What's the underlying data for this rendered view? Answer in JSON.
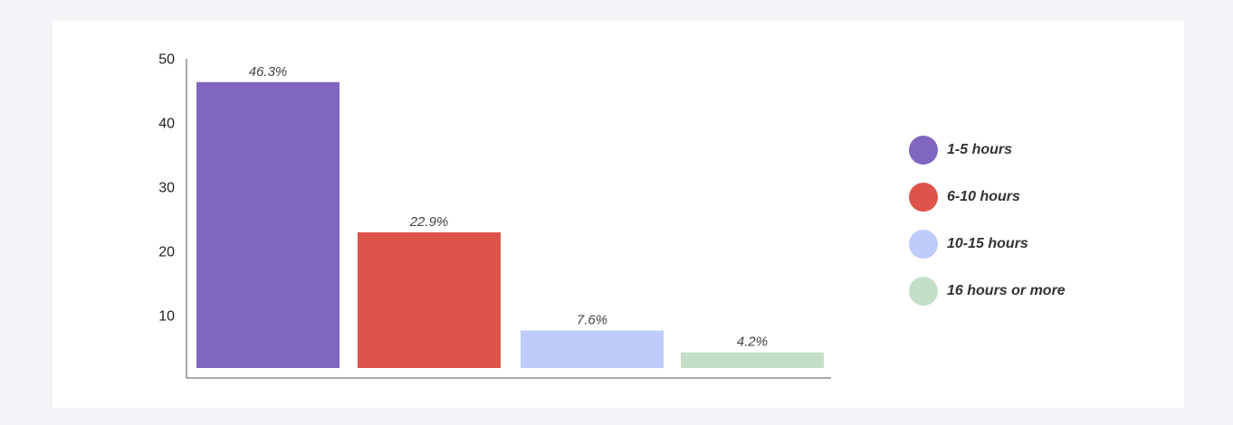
{
  "chart_data": {
    "type": "bar",
    "categories": [
      "1-5 hours",
      "6-10 hours",
      "10-15 hours",
      "16 hours or more"
    ],
    "values": [
      46.3,
      22.9,
      7.6,
      4.2
    ],
    "data_labels": [
      "46.3%",
      "22.9%",
      "7.6%",
      "4.2%"
    ],
    "colors": [
      "#8066c0",
      "#de534a",
      "#bfcbfb",
      "#c4dfc8"
    ],
    "yticks": [
      10,
      20,
      30,
      40,
      50
    ],
    "ylim": [
      0,
      50
    ],
    "legend_position": "right",
    "grid": false
  }
}
